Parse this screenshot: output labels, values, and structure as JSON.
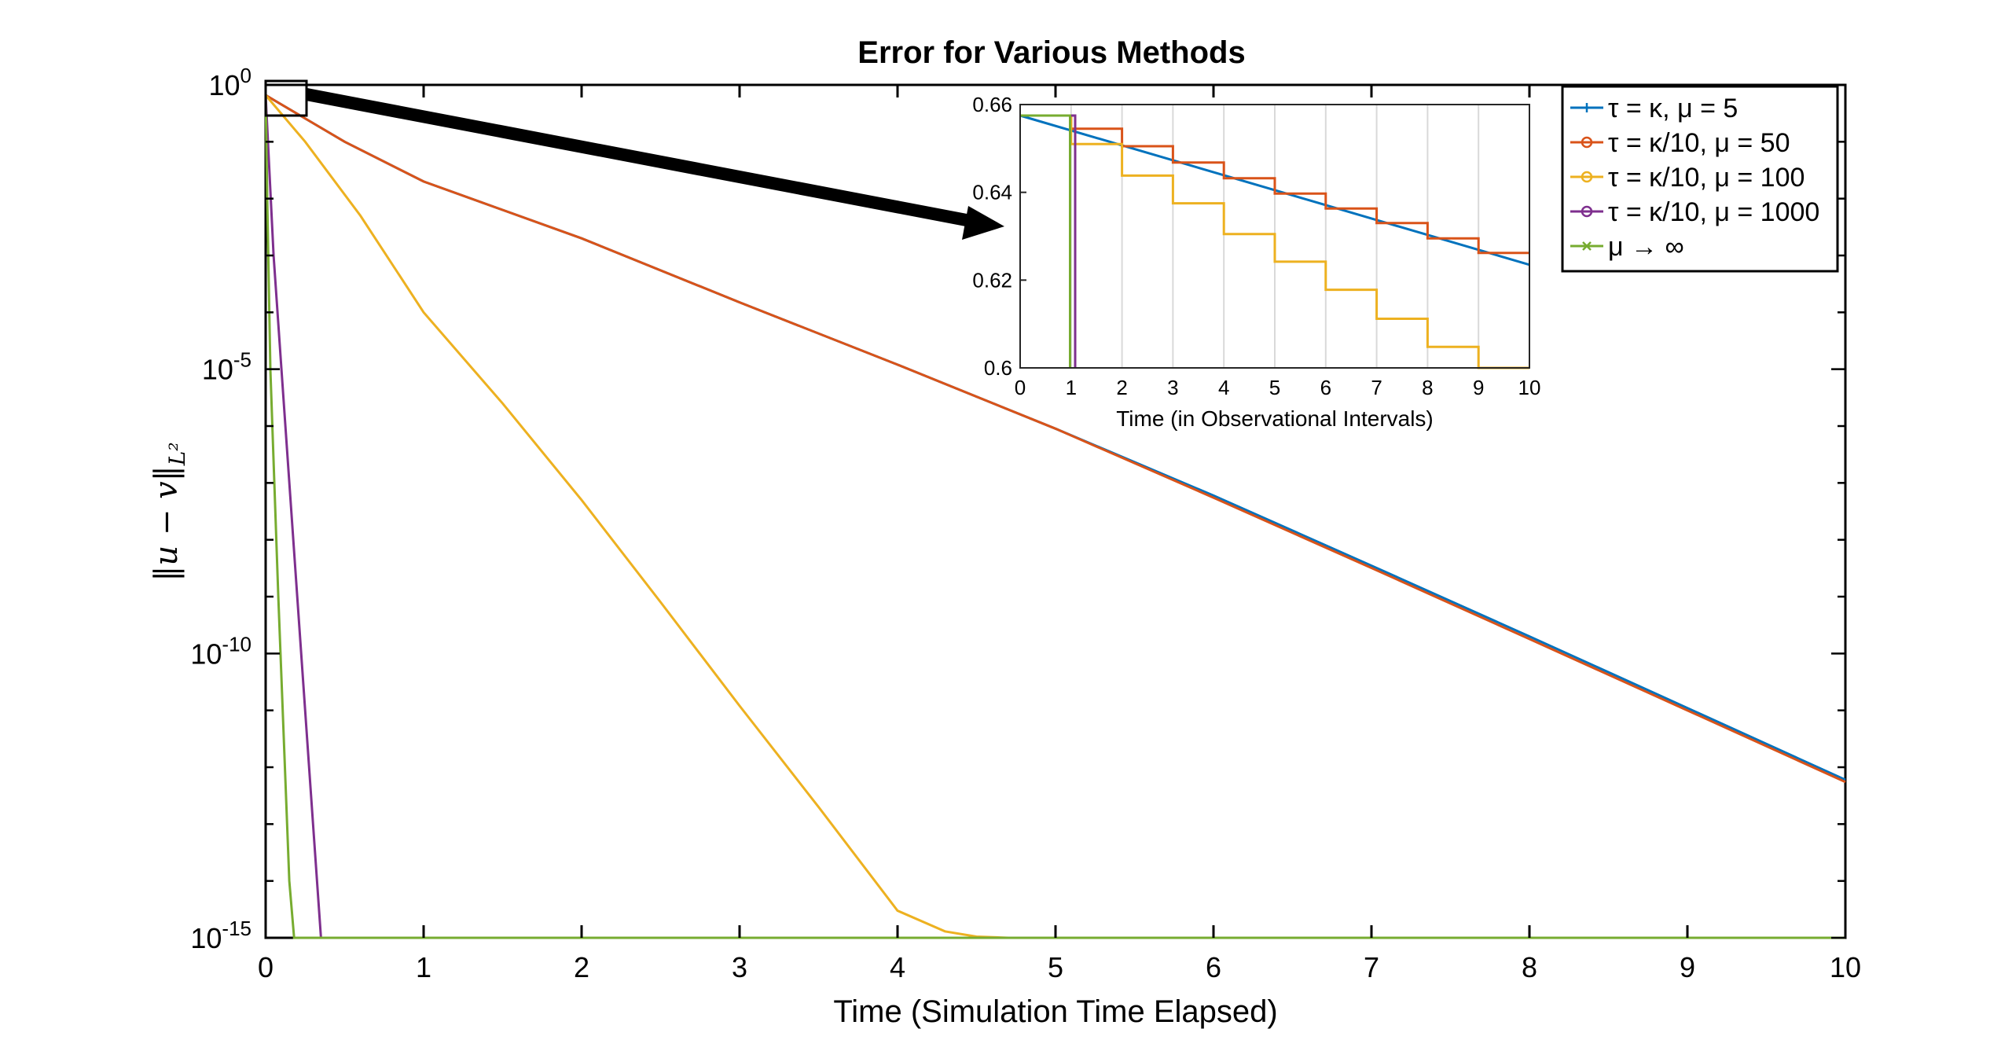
{
  "chart_data": {
    "type": "line",
    "title": "Error for Various Methods",
    "xlabel": "Time (Simulation Time Elapsed)",
    "ylabel": "||u − v||L²",
    "xlim": [
      0,
      10
    ],
    "ylim": [
      1e-15,
      1
    ],
    "yscale": "log",
    "xticks": [
      "0",
      "1",
      "2",
      "3",
      "4",
      "5",
      "6",
      "7",
      "8",
      "9",
      "10"
    ],
    "yticks": [
      {
        "value": 1,
        "base": "10",
        "exp": "0"
      },
      {
        "value": 1e-05,
        "base": "10",
        "exp": "-5"
      },
      {
        "value": 1e-10,
        "base": "10",
        "exp": "-10"
      },
      {
        "value": 1e-15,
        "base": "10",
        "exp": "-15"
      }
    ],
    "grid": false,
    "legend_position": "top-right",
    "series": [
      {
        "name": "τ = κ, μ = 5",
        "color": "#0072BD",
        "marker": "+",
        "x": [
          0,
          0.5,
          1,
          2,
          3,
          4,
          5,
          6,
          7,
          8,
          9,
          10
        ],
        "y": [
          0.66,
          0.1,
          0.02,
          0.002,
          0.00015,
          1.2e-05,
          9e-07,
          6e-08,
          3.5e-09,
          2e-10,
          1.1e-11,
          6e-13
        ]
      },
      {
        "name": "τ = κ/10, μ = 50",
        "color": "#D95319",
        "marker": "o",
        "x": [
          0,
          0.5,
          1,
          2,
          3,
          4,
          5,
          6,
          7,
          8,
          9,
          10
        ],
        "y": [
          0.66,
          0.1,
          0.02,
          0.002,
          0.00015,
          1.2e-05,
          9e-07,
          5.5e-08,
          3.2e-09,
          1.8e-10,
          1e-11,
          5.5e-13
        ]
      },
      {
        "name": "τ = κ/10, μ = 100",
        "color": "#EDB120",
        "marker": "o",
        "x": [
          0,
          0.25,
          0.6,
          1,
          1.5,
          2,
          2.5,
          3,
          3.5,
          4,
          4.3,
          4.5,
          4.7,
          5,
          6,
          7,
          8,
          9,
          10
        ],
        "y": [
          0.66,
          0.1,
          0.005,
          0.0001,
          2.5e-06,
          5e-08,
          8e-10,
          1.2e-11,
          2e-13,
          3e-15,
          1.3e-15,
          1.05e-15,
          1e-15,
          1e-15,
          1e-15,
          1e-15,
          1e-15,
          1e-15,
          1e-15
        ]
      },
      {
        "name": "τ = κ/10, μ = 1000",
        "color": "#7E2F8E",
        "marker": "o",
        "x": [
          0,
          0.05,
          0.1,
          0.2,
          0.3,
          0.35,
          1,
          2,
          3,
          4,
          5,
          6,
          7,
          8,
          9,
          10
        ],
        "y": [
          0.66,
          0.001,
          1e-05,
          1e-09,
          1e-13,
          1e-15,
          1e-15,
          1e-15,
          1e-15,
          1e-15,
          1e-15,
          1e-15,
          1e-15,
          1e-15,
          1e-15,
          1e-15
        ]
      },
      {
        "name": "μ → ∞",
        "color": "#77AC30",
        "marker": "x",
        "x": [
          0,
          0.01,
          0.03,
          0.08,
          0.15,
          0.18,
          1,
          2,
          3,
          4,
          5,
          6,
          7,
          8,
          9,
          10
        ],
        "y": [
          0.66,
          0.01,
          1e-05,
          1e-09,
          1e-14,
          1e-15,
          1e-15,
          1e-15,
          1e-15,
          1e-15,
          1e-15,
          1e-15,
          1e-15,
          1e-15,
          1e-15,
          1e-15
        ]
      }
    ],
    "inset": {
      "xlabel": "Time (in Observational Intervals)",
      "xlim": [
        0,
        10
      ],
      "ylim": [
        0.6,
        0.66
      ],
      "xticks": [
        "0",
        "1",
        "2",
        "3",
        "4",
        "5",
        "6",
        "7",
        "8",
        "9",
        "10"
      ],
      "yticks": [
        "0.6",
        "0.62",
        "0.64",
        "0.66"
      ],
      "grid": "vertical",
      "series": [
        {
          "name": "τ = κ, μ = 5",
          "color": "#0072BD",
          "x": [
            0,
            10
          ],
          "y": [
            0.6575,
            0.6235
          ]
        },
        {
          "name": "τ = κ/10, μ = 50",
          "color": "#D95319",
          "x": [
            0,
            1,
            1,
            2,
            2,
            3,
            3,
            4,
            4,
            5,
            5,
            6,
            6,
            7,
            7,
            8,
            8,
            9,
            9,
            10
          ],
          "y": [
            0.6575,
            0.6575,
            0.6545,
            0.6545,
            0.6505,
            0.6505,
            0.6468,
            0.6468,
            0.6432,
            0.6432,
            0.6397,
            0.6397,
            0.6363,
            0.6363,
            0.633,
            0.633,
            0.6295,
            0.6295,
            0.6262,
            0.6262
          ]
        },
        {
          "name": "τ = κ/10, μ = 100",
          "color": "#EDB120",
          "x": [
            0,
            1,
            1,
            2,
            2,
            3,
            3,
            4,
            4,
            5,
            5,
            6,
            6,
            7,
            7,
            8,
            8,
            9,
            9,
            10
          ],
          "y": [
            0.6575,
            0.6575,
            0.651,
            0.651,
            0.6438,
            0.6438,
            0.6375,
            0.6375,
            0.6305,
            0.6305,
            0.6242,
            0.6242,
            0.6178,
            0.6178,
            0.6112,
            0.6112,
            0.6048,
            0.6048,
            0.6,
            0.6
          ]
        },
        {
          "name": "τ = κ/10, μ = 1000",
          "color": "#7E2F8E",
          "x": [
            0,
            1.08,
            1.08
          ],
          "y": [
            0.6575,
            0.6575,
            0.6
          ]
        },
        {
          "name": "μ → ∞",
          "color": "#77AC30",
          "x": [
            0,
            0.98,
            0.98
          ],
          "y": [
            0.6575,
            0.6575,
            0.6
          ]
        }
      ]
    }
  }
}
